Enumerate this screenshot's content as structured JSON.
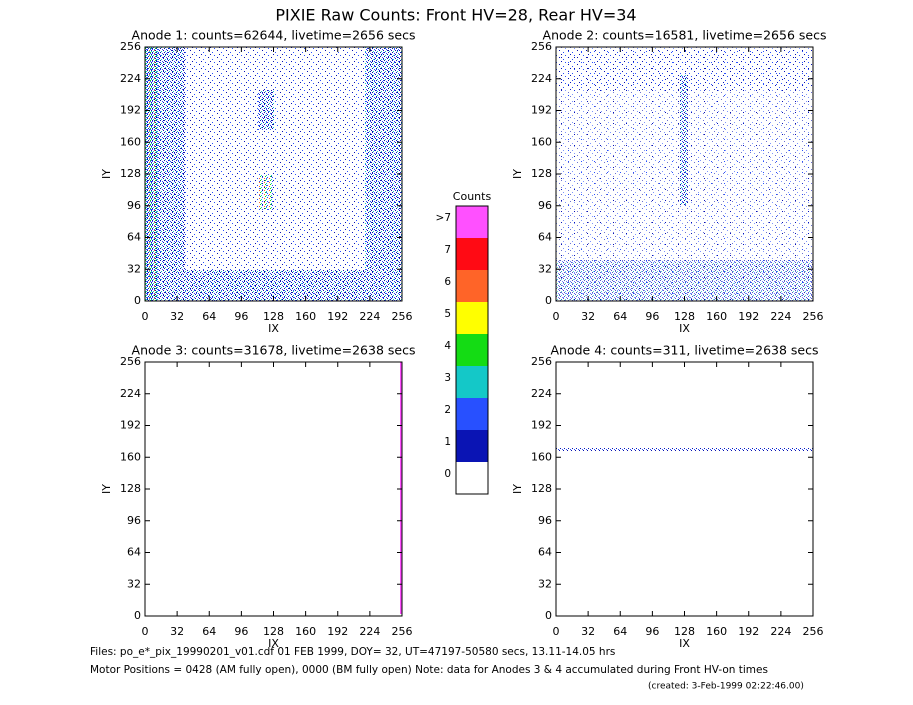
{
  "title": "PIXIE Raw Counts:  Front HV=28, Rear HV=34",
  "notes": [
    "Files: po_e*_pix_19990201_v01.cdf    01 FEB 1999, DOY= 32, UT=47197-50580 secs, 13.11-14.05 hrs",
    "Motor Positions = 0428 (AM fully open), 0000 (BM fully open)    Note: data for Anodes 3 & 4 accumulated during Front HV-on times",
    "(created:  3-Feb-1999 02:22:46.00)"
  ],
  "chart_data": [
    {
      "type": "heatmap",
      "title": "Anode 1: counts=62644, livetime=2656 secs",
      "xlabel": "IX",
      "ylabel": "IY",
      "xlim": [
        0,
        256
      ],
      "ylim": [
        0,
        256
      ],
      "xticks": [
        0,
        32,
        64,
        96,
        128,
        160,
        192,
        224,
        256
      ],
      "yticks": [
        0,
        32,
        64,
        96,
        128,
        160,
        192,
        224,
        256
      ]
    },
    {
      "type": "heatmap",
      "title": "Anode 2: counts=16581, livetime=2656 secs",
      "xlabel": "IX",
      "ylabel": "IY",
      "xlim": [
        0,
        256
      ],
      "ylim": [
        0,
        256
      ],
      "xticks": [
        0,
        32,
        64,
        96,
        128,
        160,
        192,
        224,
        256
      ],
      "yticks": [
        0,
        32,
        64,
        96,
        128,
        160,
        192,
        224,
        256
      ]
    },
    {
      "type": "heatmap",
      "title": "Anode 3: counts=31678, livetime=2638 secs",
      "xlabel": "IX",
      "ylabel": "IY",
      "xlim": [
        0,
        256
      ],
      "ylim": [
        0,
        256
      ],
      "xticks": [
        0,
        32,
        64,
        96,
        128,
        160,
        192,
        224,
        256
      ],
      "yticks": [
        0,
        32,
        64,
        96,
        128,
        160,
        192,
        224,
        256
      ]
    },
    {
      "type": "heatmap",
      "title": "Anode 4: counts=311, livetime=2638 secs",
      "xlabel": "IX",
      "ylabel": "IY",
      "xlim": [
        0,
        256
      ],
      "ylim": [
        0,
        256
      ],
      "xticks": [
        0,
        32,
        64,
        96,
        128,
        160,
        192,
        224,
        256
      ],
      "yticks": [
        0,
        32,
        64,
        96,
        128,
        160,
        192,
        224,
        256
      ]
    },
    {
      "type": "colorbar",
      "title": "Counts",
      "categories": [
        "0",
        "1",
        "2",
        "3",
        "4",
        "5",
        "6",
        "7",
        ">7"
      ],
      "colors": [
        "#ffffff",
        "#0a14b4",
        "#2850ff",
        "#14c8c8",
        "#14dc14",
        "#ffff00",
        "#ff6428",
        "#ff0a14",
        "#ff50ff"
      ]
    }
  ]
}
